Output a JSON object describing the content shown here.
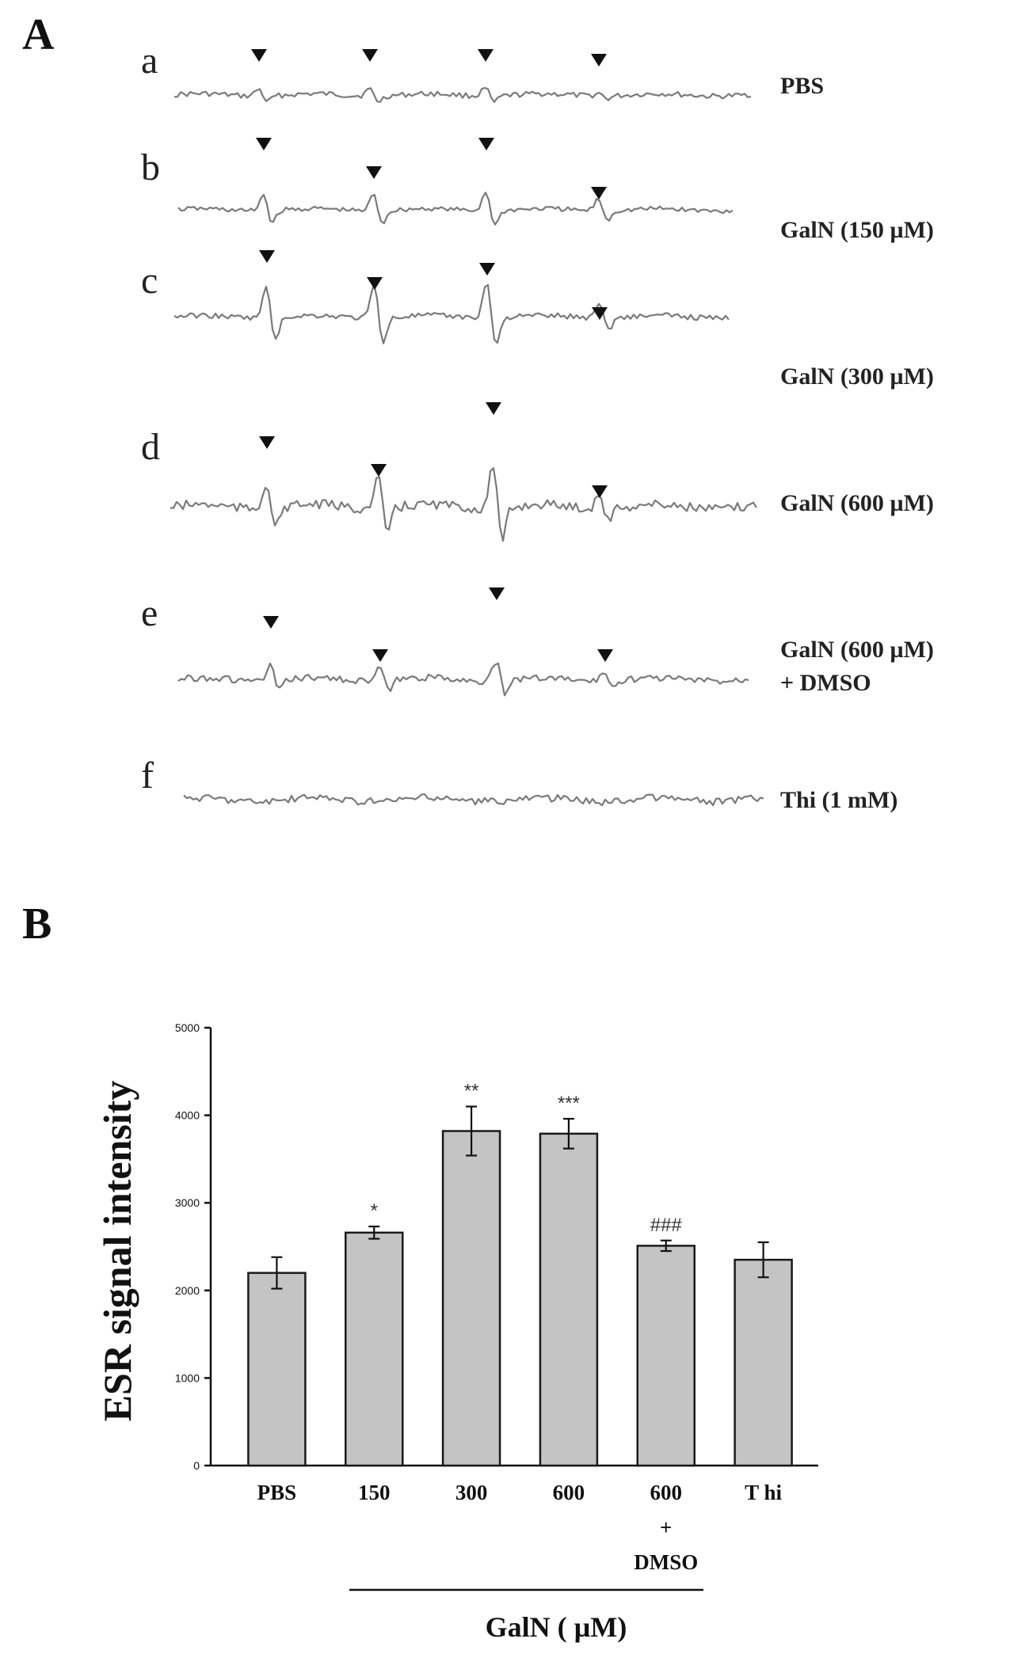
{
  "panels": {
    "a_letter": "A",
    "b_letter": "B"
  },
  "esr_spectra": [
    {
      "row": "a",
      "label_lines": [
        "PBS"
      ]
    },
    {
      "row": "b",
      "label_lines": [
        "GalN (150 µM)"
      ]
    },
    {
      "row": "c",
      "label_lines": [
        "GalN (300 µM)"
      ]
    },
    {
      "row": "d",
      "label_lines": [
        "GalN (600 µM)"
      ]
    },
    {
      "row": "e",
      "label_lines": [
        "GalN (600 µM)",
        "+ DMSO"
      ]
    },
    {
      "row": "f",
      "label_lines": [
        "Thi (1 mM)"
      ]
    }
  ],
  "chart_data": {
    "type": "bar",
    "title": "",
    "xlabel": "",
    "ylabel": "ESR signal intensity",
    "ylim": [
      0,
      5000
    ],
    "yticks": [
      0,
      1000,
      2000,
      3000,
      4000,
      5000
    ],
    "categories": [
      "PBS",
      "150",
      "300",
      "600",
      "600\n+\nDMSO",
      "T hi"
    ],
    "values": [
      2200,
      2660,
      3820,
      3790,
      2510,
      2350
    ],
    "errors": [
      180,
      70,
      280,
      170,
      60,
      200
    ],
    "significance": [
      "",
      "*",
      "**",
      "***",
      "###",
      ""
    ],
    "group_label": "GalN ( µM)",
    "group_span": [
      "150",
      "600\n+\nDMSO"
    ],
    "bar_color": "#c4c4c4",
    "grid": false
  }
}
